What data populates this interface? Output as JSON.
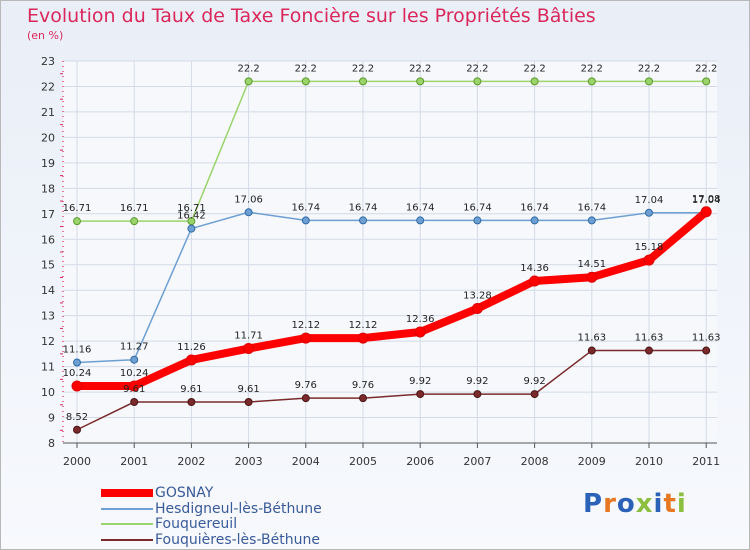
{
  "header": {
    "title": "Evolution du Taux de Taxe Foncière sur les Propriétés Bâties",
    "unit": "(en %)"
  },
  "logo": {
    "letters": [
      "P",
      "r",
      "o",
      "x",
      "i",
      "t",
      "i"
    ],
    "colors": [
      "#2b62b8",
      "#e87722",
      "#2b62b8",
      "#8cbe3f",
      "#2b62b8",
      "#e87722",
      "#8cbe3f"
    ]
  },
  "chart_data": {
    "type": "line",
    "title": "Evolution du Taux de Taxe Foncière sur les Propriétés Bâties",
    "xlabel": "",
    "ylabel": "(en %)",
    "ylim": [
      8,
      23
    ],
    "yticks": [
      "8",
      "9",
      "10",
      "11",
      "12",
      "13",
      "14",
      "15",
      "16",
      "17",
      "18",
      "19",
      "20",
      "21",
      "22",
      "23"
    ],
    "categories": [
      "2000",
      "2001",
      "2002",
      "2003",
      "2004",
      "2005",
      "2006",
      "2007",
      "2008",
      "2009",
      "2010",
      "2011"
    ],
    "series": [
      {
        "name": "GOSNAY",
        "color": "#ff0000",
        "values": [
          10.24,
          10.24,
          11.26,
          11.71,
          12.12,
          12.12,
          12.36,
          13.28,
          14.36,
          14.51,
          15.18,
          17.08
        ],
        "labels": [
          "10.24",
          "10.24",
          "11.26",
          "11.71",
          "12.12",
          "12.12",
          "12.36",
          "13.28",
          "14.36",
          "14.51",
          "15.18",
          "17.08"
        ]
      },
      {
        "name": "Hesdigneul-lès-Béthune",
        "color": "#6e9fd2",
        "values": [
          11.16,
          11.27,
          16.42,
          17.06,
          16.74,
          16.74,
          16.74,
          16.74,
          16.74,
          16.74,
          17.04,
          17.04
        ],
        "labels": [
          "11.16",
          "11.27",
          "16.42",
          "17.06",
          "16.74",
          "16.74",
          "16.74",
          "16.74",
          "16.74",
          "16.74",
          "17.04",
          "17.04"
        ]
      },
      {
        "name": "Fouquereuil",
        "color": "#9ad46a",
        "values": [
          16.71,
          16.71,
          16.71,
          22.2,
          22.2,
          22.2,
          22.2,
          22.2,
          22.2,
          22.2,
          22.2,
          22.2
        ],
        "labels": [
          "16.71",
          "16.71",
          "16.71",
          "22.2",
          "22.2",
          "22.2",
          "22.2",
          "22.2",
          "22.2",
          "22.2",
          "22.2",
          "22.2"
        ]
      },
      {
        "name": "Fouquières-lès-Béthune",
        "color": "#7a2a2a",
        "values": [
          8.52,
          9.61,
          9.61,
          9.61,
          9.76,
          9.76,
          9.92,
          9.92,
          9.92,
          11.63,
          11.63,
          11.63
        ],
        "labels": [
          "8.52",
          "9.61",
          "9.61",
          "9.61",
          "9.76",
          "9.76",
          "9.92",
          "9.92",
          "9.92",
          "11.63",
          "11.63",
          "11.63"
        ]
      }
    ],
    "legend": [
      "GOSNAY",
      "Hesdigneul-lès-Béthune",
      "Fouquereuil",
      "Fouquières-lès-Béthune"
    ],
    "legend_position": "bottom-left"
  }
}
